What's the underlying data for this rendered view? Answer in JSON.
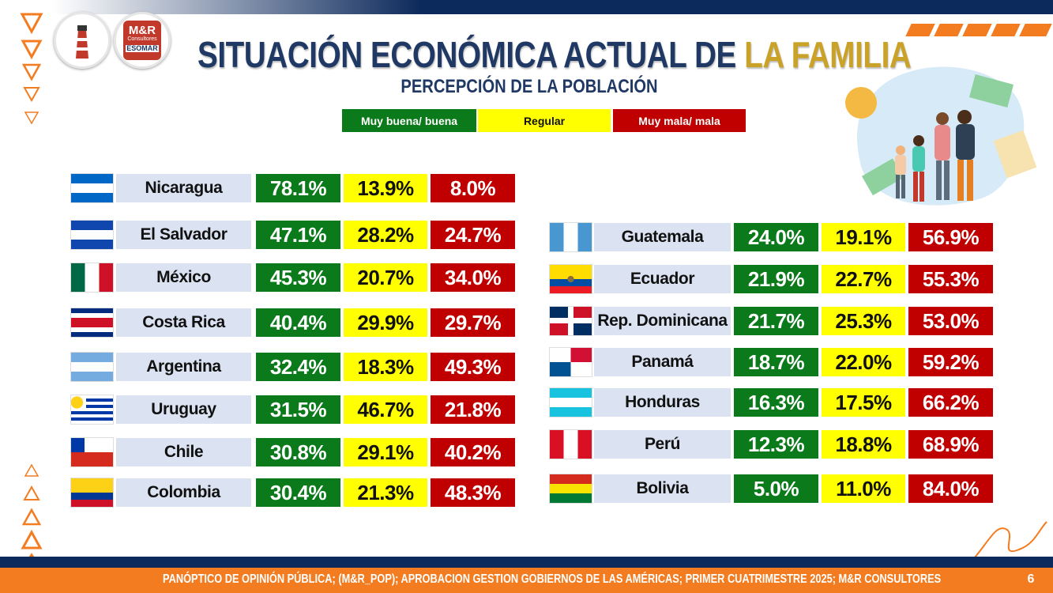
{
  "logo": {
    "name": "M&R",
    "sub": "Consultores",
    "org": "ESOMAR"
  },
  "header": {
    "title": "SITUACIÓN ECONÓMICA ACTUAL DE",
    "title_highlight": "LA FAMILIA",
    "subtitle": "PERCEPCIÓN DE LA POBLACIÓN"
  },
  "legend": [
    "Muy buena/ buena",
    "Regular",
    "Muy mala/ mala"
  ],
  "tables": [
    {
      "rows": [
        [
          "Nicaragua",
          "78.1%",
          "13.9%",
          "8.0%"
        ],
        [
          "El Salvador",
          "47.1%",
          "28.2%",
          "24.7%"
        ],
        [
          "México",
          "45.3%",
          "20.7%",
          "34.0%"
        ],
        [
          "Costa Rica",
          "40.4%",
          "29.9%",
          "29.7%"
        ],
        [
          "Argentina",
          "32.4%",
          "18.3%",
          "49.3%"
        ],
        [
          "Uruguay",
          "31.5%",
          "46.7%",
          "21.8%"
        ],
        [
          "Chile",
          "30.8%",
          "29.1%",
          "40.2%"
        ],
        [
          "Colombia",
          "30.4%",
          "21.3%",
          "48.3%"
        ]
      ]
    },
    {
      "rows": [
        [
          "Guatemala",
          "24.0%",
          "19.1%",
          "56.9%"
        ],
        [
          "Ecuador",
          "21.9%",
          "22.7%",
          "55.3%"
        ],
        [
          "Rep. Dominicana",
          "21.7%",
          "25.3%",
          "53.0%"
        ],
        [
          "Panamá",
          "18.7%",
          "22.0%",
          "59.2%"
        ],
        [
          "Honduras",
          "16.3%",
          "17.5%",
          "66.2%"
        ],
        [
          "Perú",
          "12.3%",
          "18.8%",
          "68.9%"
        ],
        [
          "Bolivia",
          "5.0%",
          "11.0%",
          "84.0%"
        ]
      ]
    }
  ],
  "footer": {
    "source": "PANÓPTICO DE OPINIÓN PÚBLICA; (M&R_POP); APROBACION GESTION GOBIERNOS DE LAS AMÉRICAS; PRIMER CUATRIMESTRE 2025; M&R CONSULTORES",
    "page": "6"
  }
}
